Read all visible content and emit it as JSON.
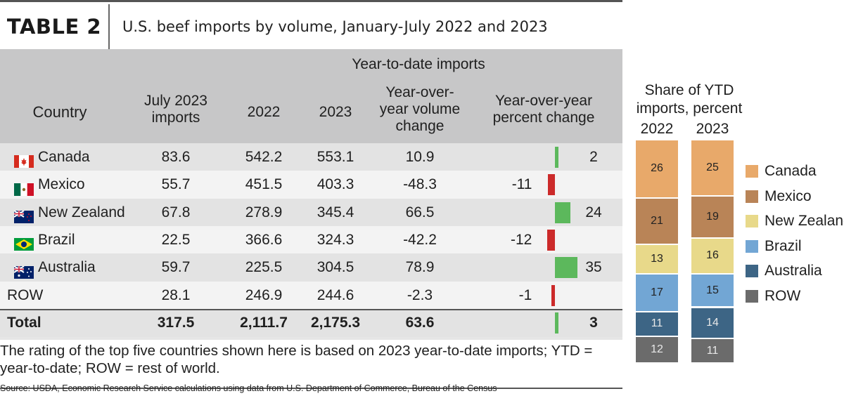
{
  "title": {
    "tag": "TABLE 2",
    "text": "U.S. beef imports by volume, January-July 2022 and 2023"
  },
  "table": {
    "group_header": "Year-to-date imports",
    "headers": {
      "country": "Country",
      "july": "July 2023 imports",
      "y2022": "2022",
      "y2023": "2023",
      "vol_change": "Year-over-year volume change",
      "pct_change": "Year-over-year percent change"
    },
    "rows": [
      {
        "country": "Canada",
        "flag": "canada",
        "july": "83.6",
        "y2022": "542.2",
        "y2023": "553.1",
        "vol": "10.9",
        "pct": "2",
        "pct_value": 2
      },
      {
        "country": "Mexico",
        "flag": "mexico",
        "july": "55.7",
        "y2022": "451.5",
        "y2023": "403.3",
        "vol": "-48.3",
        "pct": "-11",
        "pct_value": -11
      },
      {
        "country": "New Zealand",
        "flag": "new-zealand",
        "july": "67.8",
        "y2022": "278.9",
        "y2023": "345.4",
        "vol": "66.5",
        "pct": "24",
        "pct_value": 24
      },
      {
        "country": "Brazil",
        "flag": "brazil",
        "july": "22.5",
        "y2022": "366.6",
        "y2023": "324.3",
        "vol": "-42.2",
        "pct": "-12",
        "pct_value": -12
      },
      {
        "country": "Australia",
        "flag": "australia",
        "july": "59.7",
        "y2022": "225.5",
        "y2023": "304.5",
        "vol": "78.9",
        "pct": "35",
        "pct_value": 35
      },
      {
        "country": "ROW",
        "flag": "",
        "july": "28.1",
        "y2022": "246.9",
        "y2023": "244.6",
        "vol": "-2.3",
        "pct": "-1",
        "pct_value": -1
      }
    ],
    "total": {
      "country": "Total",
      "july": "317.5",
      "y2022": "2,111.7",
      "y2023": "2,175.3",
      "vol": "63.6",
      "pct": "3",
      "pct_value": 3
    }
  },
  "colors": {
    "positive_bar": "#5cb85c",
    "negative_bar": "#cc2a2a"
  },
  "chart_data": {
    "type": "bar",
    "title": "Share of YTD imports, percent",
    "categories": [
      "2022",
      "2023"
    ],
    "series": [
      {
        "name": "Canada",
        "color": "#e8a96a",
        "values": [
          26,
          25
        ]
      },
      {
        "name": "Mexico",
        "color": "#b98457",
        "values": [
          21,
          19
        ]
      },
      {
        "name": "New Zealand",
        "color": "#e8d98a",
        "values": [
          13,
          16
        ]
      },
      {
        "name": "Brazil",
        "color": "#72a6d4",
        "values": [
          17,
          15
        ]
      },
      {
        "name": "Australia",
        "color": "#3d6585",
        "values": [
          11,
          14
        ]
      },
      {
        "name": "ROW",
        "color": "#6b6b6b",
        "values": [
          12,
          11
        ]
      }
    ],
    "stacked": true,
    "legend_position": "right"
  },
  "footnote": "The rating of the top five countries shown here is based on 2023 year-to-date imports; YTD = year-to-date; ROW = rest of world.",
  "source": "Source: USDA, Economic Research Service calculations using data from U.S. Department of Commerce, Bureau of the Census"
}
